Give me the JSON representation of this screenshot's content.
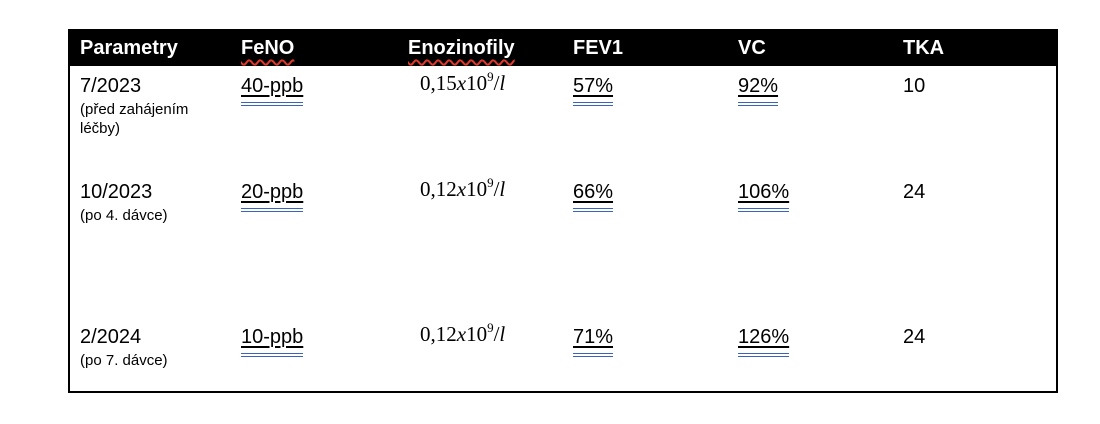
{
  "accents": {
    "header_bg": "#000000",
    "header_text": "#ffffff",
    "body_text": "#000000",
    "spellcheck_underline_color": "#e0382c",
    "grammar_underline_color": "#3a62c1",
    "table_border_color": "#000000"
  },
  "table": {
    "header": {
      "columns": [
        {
          "label": "Parametry",
          "spellcheck_marked": false
        },
        {
          "label": "FeNO",
          "spellcheck_marked": true
        },
        {
          "label": "Enozinofily",
          "spellcheck_marked": true
        },
        {
          "label": "FEV1",
          "spellcheck_marked": false
        },
        {
          "label": "VC",
          "spellcheck_marked": false
        },
        {
          "label": "TKA",
          "spellcheck_marked": false
        }
      ]
    },
    "rows": [
      {
        "period": "7/2023",
        "note": "(před zahájením léčby)",
        "feno": "40-ppb",
        "eos": {
          "coef": "0,15",
          "var": "x",
          "base": "10",
          "exp": "9",
          "slash": "/",
          "unit": "l"
        },
        "fev1": "57%",
        "vc": "92%",
        "tka": "10"
      },
      {
        "period": "10/2023",
        "note": "(po 4. dávce)",
        "feno": "20-ppb",
        "eos": {
          "coef": "0,12",
          "var": "x",
          "base": "10",
          "exp": "9",
          "slash": "/",
          "unit": "l"
        },
        "fev1": "66%",
        "vc": "106%",
        "tka": "24"
      },
      {
        "period": "2/2024",
        "note": "(po 7. dávce)",
        "feno": "10-ppb",
        "eos": {
          "coef": "0,12",
          "var": "x",
          "base": "10",
          "exp": "9",
          "slash": "/",
          "unit": "l"
        },
        "fev1": "71%",
        "vc": "126%",
        "tka": "24"
      }
    ]
  }
}
